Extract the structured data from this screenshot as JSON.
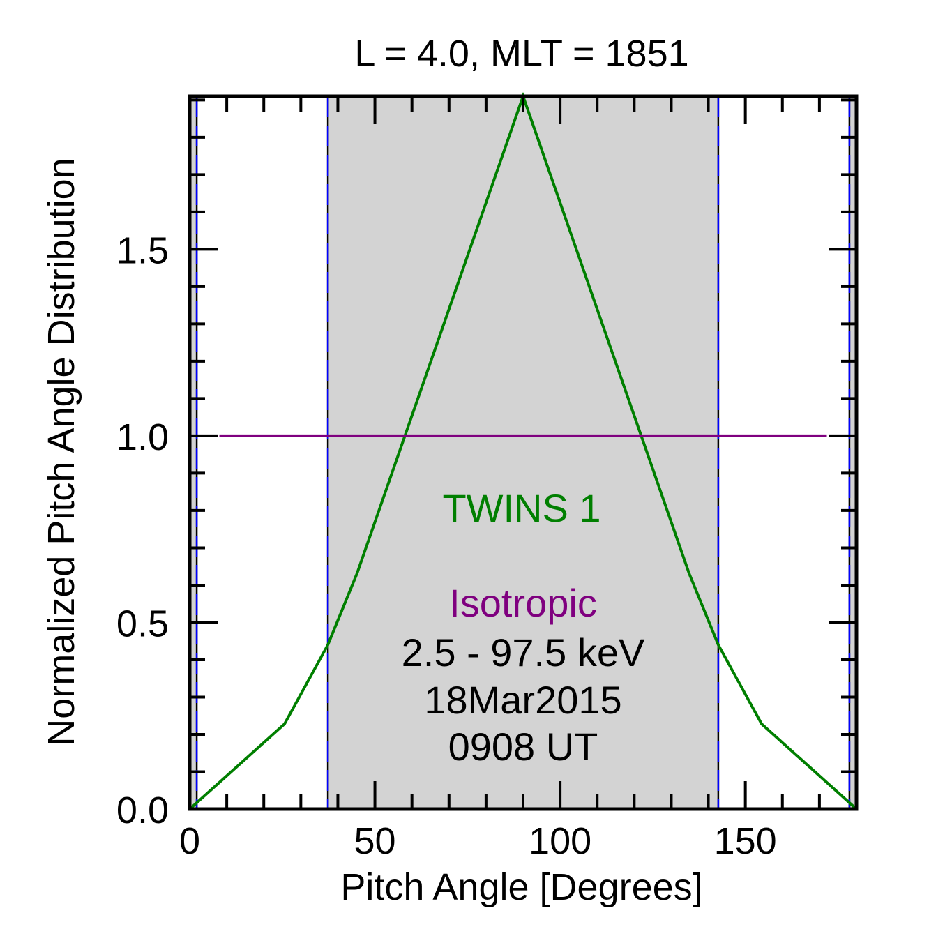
{
  "chart_data": {
    "type": "line",
    "title": "L =  4.0, MLT = 1851",
    "xlabel": "Pitch Angle [Degrees]",
    "ylabel": "Normalized Pitch Angle Distribution",
    "xlim": [
      0,
      180
    ],
    "ylim": [
      0,
      1.91
    ],
    "x_major_ticks": [
      0,
      50,
      100,
      150
    ],
    "x_tick_labels": [
      "0",
      "50",
      "100",
      "150"
    ],
    "x_minor_step": 10,
    "y_major_ticks": [
      0.0,
      0.5,
      1.0,
      1.5
    ],
    "y_tick_labels": [
      "0.0",
      "0.5",
      "1.0",
      "1.5"
    ],
    "y_minor_step": 0.1,
    "grid": false,
    "shaded_regions": [
      {
        "x_range": [
          0,
          1.9
        ],
        "color": "#d3d3d3"
      },
      {
        "x_range": [
          37.3,
          142.7
        ],
        "color": "#d3d3d3"
      },
      {
        "x_range": [
          178.1,
          180
        ],
        "color": "#d3d3d3"
      }
    ],
    "boundary_lines": [
      1.9,
      37.3,
      142.7,
      178.1
    ],
    "series": [
      {
        "name": "TWINS 1",
        "color": "#007f00",
        "x": [
          0,
          25.6,
          37.3,
          45.2,
          90,
          134.8,
          142.7,
          154.4,
          180
        ],
        "y": [
          0.0,
          0.228,
          0.44,
          0.632,
          1.91,
          0.632,
          0.44,
          0.228,
          0.0
        ]
      },
      {
        "name": "Isotropic",
        "color": "#7f007f",
        "x": [
          8,
          172
        ],
        "y": [
          1.0,
          1.0
        ]
      }
    ],
    "annotations": [
      {
        "text": "TWINS 1",
        "color": "#007f00"
      },
      {
        "text": "Isotropic",
        "color": "#7f007f"
      },
      {
        "text": "2.5 - 97.5 keV",
        "color": "#000000"
      },
      {
        "text": "18Mar2015",
        "color": "#000000"
      },
      {
        "text": "0908 UT",
        "color": "#000000"
      }
    ]
  }
}
